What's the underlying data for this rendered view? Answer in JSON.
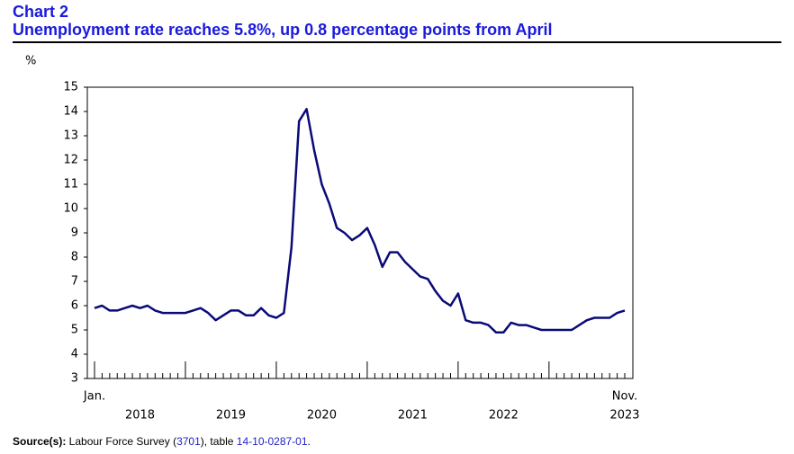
{
  "chart_data": {
    "type": "line",
    "kicker": "Chart 2",
    "title": "Unemployment rate reaches 5.8%, up 0.8 percentage points from April",
    "y_label": "%",
    "categories": [
      "Jan.",
      null,
      null,
      null,
      null,
      null,
      null,
      null,
      null,
      null,
      null,
      null,
      null,
      null,
      null,
      null,
      null,
      null,
      null,
      null,
      null,
      null,
      null,
      null,
      null,
      null,
      null,
      null,
      null,
      null,
      null,
      null,
      null,
      null,
      null,
      null,
      null,
      null,
      null,
      null,
      null,
      null,
      null,
      null,
      null,
      null,
      null,
      null,
      null,
      null,
      null,
      null,
      null,
      null,
      null,
      null,
      null,
      null,
      null,
      null,
      null,
      null,
      null,
      null,
      null,
      null,
      null,
      null,
      null,
      null,
      "Nov."
    ],
    "year_labels": [
      "2018",
      "2019",
      "2020",
      "2021",
      "2022",
      "2023"
    ],
    "series": [
      {
        "name": "Unemployment rate",
        "color": "#0a0a78",
        "values": [
          5.9,
          6.0,
          5.8,
          5.8,
          5.9,
          6.0,
          5.9,
          6.0,
          5.8,
          5.7,
          5.7,
          5.7,
          5.7,
          5.8,
          5.9,
          5.7,
          5.4,
          5.6,
          5.8,
          5.8,
          5.6,
          5.6,
          5.9,
          5.6,
          5.5,
          5.7,
          8.4,
          13.6,
          14.1,
          12.4,
          11.0,
          10.2,
          9.2,
          9.0,
          8.7,
          8.9,
          9.2,
          8.5,
          7.6,
          8.2,
          8.2,
          7.8,
          7.5,
          7.2,
          7.1,
          6.6,
          6.2,
          6.0,
          6.5,
          5.4,
          5.3,
          5.3,
          5.2,
          4.9,
          4.9,
          5.3,
          5.2,
          5.2,
          5.1,
          5.0,
          5.0,
          5.0,
          5.0,
          5.0,
          5.2,
          5.4,
          5.5,
          5.5,
          5.5,
          5.7,
          5.8
        ]
      }
    ],
    "ylim": [
      3,
      15
    ],
    "yticks": [
      3,
      4,
      5,
      6,
      7,
      8,
      9,
      10,
      11,
      12,
      13,
      14,
      15
    ],
    "grid": false,
    "source": {
      "label": "Source(s):",
      "text1": " Labour Force Survey (",
      "link1": "3701",
      "text2": "), table ",
      "link2": "14-10-0287-01",
      "text3": "."
    }
  }
}
